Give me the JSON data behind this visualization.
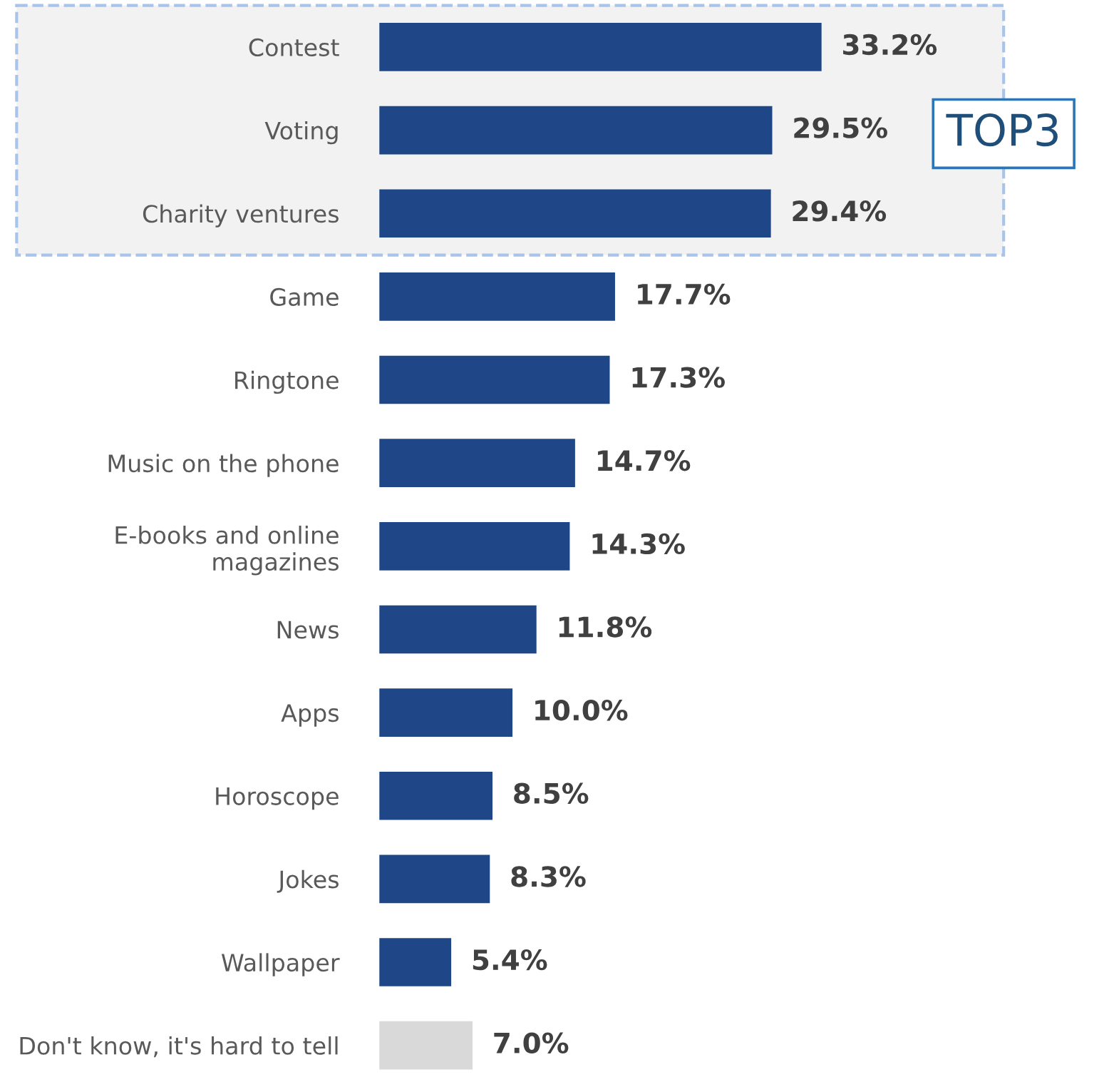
{
  "chart_data": {
    "type": "bar",
    "orientation": "horizontal",
    "categories": [
      "Contest",
      "Voting",
      "Charity ventures",
      "Game",
      "Ringtone",
      "Music on the phone",
      "E-books and online\nmagazines",
      "News",
      "Apps",
      "Horoscope",
      "Jokes",
      "Wallpaper",
      "Don't know, it's hard to tell"
    ],
    "values": [
      33.2,
      29.5,
      29.4,
      17.7,
      17.3,
      14.7,
      14.3,
      11.8,
      10.0,
      8.5,
      8.3,
      5.4,
      7.0
    ],
    "value_labels": [
      "33.2%",
      "29.5%",
      "29.4%",
      "17.7%",
      "17.3%",
      "14.7%",
      "14.3%",
      "11.8%",
      "10.0%",
      "8.5%",
      "8.3%",
      "5.4%",
      "7.0%"
    ],
    "colors": [
      "#1f4788",
      "#1f4788",
      "#1f4788",
      "#1f4788",
      "#1f4788",
      "#1f4788",
      "#1f4788",
      "#1f4788",
      "#1f4788",
      "#1f4788",
      "#1f4788",
      "#1f4788",
      "#d9d9d9"
    ],
    "bands": [
      {
        "axis": "y",
        "from": "Contest",
        "to": "Charity ventures",
        "label": "TOP3",
        "color": "#f2f2f2"
      }
    ],
    "grid": false,
    "legend": false
  }
}
